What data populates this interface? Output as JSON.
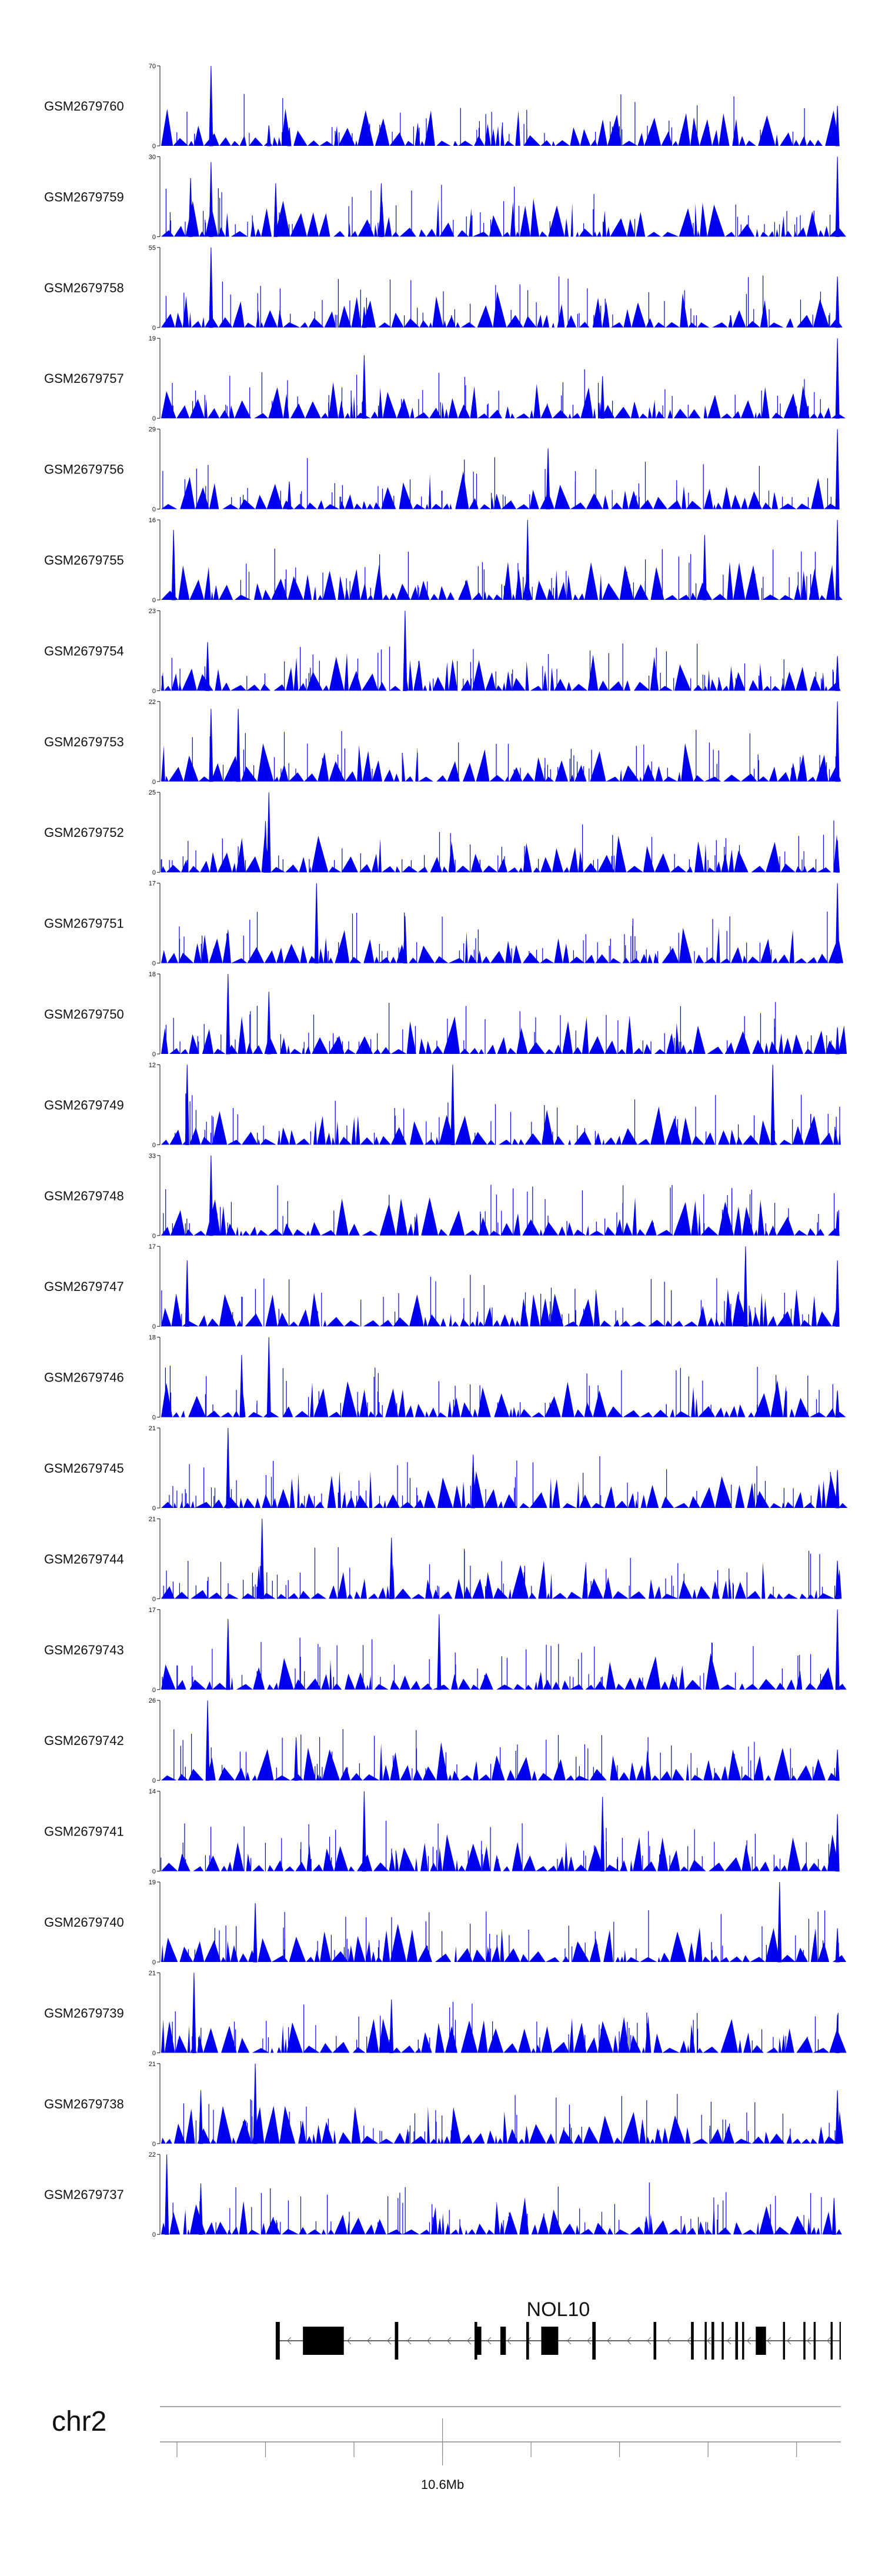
{
  "chart_data": {
    "type": "area",
    "colors": {
      "track_fill": "#0000ee",
      "axis": "#111111",
      "gene": "#000000"
    },
    "tracks": [
      {
        "name": "GSM2679760",
        "ymax": 70,
        "ymin": 0,
        "peaks": [
          [
            0.075,
            70
          ],
          [
            0.16,
            18
          ],
          [
            0.19,
            16
          ],
          [
            0.995,
            35
          ]
        ]
      },
      {
        "name": "GSM2679759",
        "ymax": 30,
        "ymin": 0,
        "peaks": [
          [
            0.045,
            22
          ],
          [
            0.075,
            28
          ],
          [
            0.17,
            20
          ],
          [
            0.325,
            20
          ],
          [
            0.995,
            30
          ]
        ]
      },
      {
        "name": "GSM2679758",
        "ymax": 55,
        "ymin": 0,
        "peaks": [
          [
            0.075,
            55
          ],
          [
            0.3,
            14
          ],
          [
            0.995,
            35
          ]
        ]
      },
      {
        "name": "GSM2679757",
        "ymax": 19,
        "ymin": 0,
        "peaks": [
          [
            0.3,
            15
          ],
          [
            0.65,
            10
          ],
          [
            0.995,
            19
          ]
        ]
      },
      {
        "name": "GSM2679756",
        "ymax": 29,
        "ymin": 0,
        "peaks": [
          [
            0.19,
            10
          ],
          [
            0.57,
            22
          ],
          [
            0.995,
            29
          ]
        ]
      },
      {
        "name": "GSM2679755",
        "ymax": 16,
        "ymin": 0,
        "peaks": [
          [
            0.02,
            14
          ],
          [
            0.54,
            16
          ],
          [
            0.8,
            13
          ],
          [
            0.995,
            16
          ]
        ]
      },
      {
        "name": "GSM2679754",
        "ymax": 23,
        "ymin": 0,
        "peaks": [
          [
            0.07,
            14
          ],
          [
            0.36,
            23
          ],
          [
            0.995,
            10
          ]
        ]
      },
      {
        "name": "GSM2679753",
        "ymax": 22,
        "ymin": 0,
        "peaks": [
          [
            0.075,
            20
          ],
          [
            0.115,
            20
          ],
          [
            0.995,
            22
          ]
        ]
      },
      {
        "name": "GSM2679752",
        "ymax": 25,
        "ymin": 0,
        "peaks": [
          [
            0.16,
            25
          ],
          [
            0.155,
            16
          ],
          [
            0.995,
            10
          ]
        ]
      },
      {
        "name": "GSM2679751",
        "ymax": 17,
        "ymin": 0,
        "peaks": [
          [
            0.23,
            17
          ],
          [
            0.36,
            10
          ],
          [
            0.995,
            17
          ]
        ]
      },
      {
        "name": "GSM2679750",
        "ymax": 18,
        "ymin": 0,
        "peaks": [
          [
            0.1,
            18
          ],
          [
            0.16,
            14
          ],
          [
            0.995,
            6
          ]
        ]
      },
      {
        "name": "GSM2679749",
        "ymax": 12,
        "ymin": 0,
        "peaks": [
          [
            0.04,
            12
          ],
          [
            0.43,
            12
          ],
          [
            0.9,
            12
          ]
        ]
      },
      {
        "name": "GSM2679748",
        "ymax": 33,
        "ymin": 0,
        "peaks": [
          [
            0.075,
            33
          ],
          [
            0.995,
            10
          ]
        ]
      },
      {
        "name": "GSM2679747",
        "ymax": 17,
        "ymin": 0,
        "peaks": [
          [
            0.04,
            14
          ],
          [
            0.86,
            17
          ],
          [
            0.995,
            14
          ]
        ]
      },
      {
        "name": "GSM2679746",
        "ymax": 18,
        "ymin": 0,
        "peaks": [
          [
            0.16,
            18
          ],
          [
            0.12,
            14
          ],
          [
            0.995,
            6
          ]
        ]
      },
      {
        "name": "GSM2679745",
        "ymax": 21,
        "ymin": 0,
        "peaks": [
          [
            0.1,
            21
          ],
          [
            0.46,
            14
          ],
          [
            0.995,
            10
          ]
        ]
      },
      {
        "name": "GSM2679744",
        "ymax": 21,
        "ymin": 0,
        "peaks": [
          [
            0.15,
            21
          ],
          [
            0.34,
            16
          ],
          [
            0.995,
            10
          ]
        ]
      },
      {
        "name": "GSM2679743",
        "ymax": 17,
        "ymin": 0,
        "peaks": [
          [
            0.1,
            15
          ],
          [
            0.41,
            16
          ],
          [
            0.995,
            17
          ]
        ]
      },
      {
        "name": "GSM2679742",
        "ymax": 26,
        "ymin": 0,
        "peaks": [
          [
            0.07,
            26
          ],
          [
            0.2,
            14
          ],
          [
            0.995,
            10
          ]
        ]
      },
      {
        "name": "GSM2679741",
        "ymax": 14,
        "ymin": 0,
        "peaks": [
          [
            0.3,
            14
          ],
          [
            0.65,
            13
          ],
          [
            0.995,
            10
          ]
        ]
      },
      {
        "name": "GSM2679740",
        "ymax": 19,
        "ymin": 0,
        "peaks": [
          [
            0.14,
            14
          ],
          [
            0.91,
            19
          ],
          [
            0.995,
            8
          ]
        ]
      },
      {
        "name": "GSM2679739",
        "ymax": 21,
        "ymin": 0,
        "peaks": [
          [
            0.05,
            21
          ],
          [
            0.34,
            14
          ],
          [
            0.995,
            10
          ]
        ]
      },
      {
        "name": "GSM2679738",
        "ymax": 21,
        "ymin": 0,
        "peaks": [
          [
            0.14,
            21
          ],
          [
            0.06,
            14
          ],
          [
            0.995,
            14
          ]
        ]
      },
      {
        "name": "GSM2679737",
        "ymax": 22,
        "ymin": 0,
        "peaks": [
          [
            0.01,
            22
          ],
          [
            0.06,
            14
          ],
          [
            0.99,
            10
          ]
        ]
      }
    ],
    "gene": {
      "name": "NOL10",
      "strand": "-",
      "start_frac": 0.17,
      "end_frac": 1.0,
      "exons": [
        {
          "start": 0.17,
          "end": 0.176
        },
        {
          "start": 0.21,
          "end": 0.27
        },
        {
          "start": 0.345,
          "end": 0.35
        },
        {
          "start": 0.462,
          "end": 0.466
        },
        {
          "start": 0.465,
          "end": 0.472
        },
        {
          "start": 0.5,
          "end": 0.508
        },
        {
          "start": 0.538,
          "end": 0.542
        },
        {
          "start": 0.56,
          "end": 0.585
        },
        {
          "start": 0.635,
          "end": 0.64
        },
        {
          "start": 0.725,
          "end": 0.729
        },
        {
          "start": 0.78,
          "end": 0.784
        },
        {
          "start": 0.8,
          "end": 0.803
        },
        {
          "start": 0.81,
          "end": 0.814
        },
        {
          "start": 0.825,
          "end": 0.828
        },
        {
          "start": 0.845,
          "end": 0.849
        },
        {
          "start": 0.855,
          "end": 0.858
        },
        {
          "start": 0.875,
          "end": 0.89
        },
        {
          "start": 0.915,
          "end": 0.918
        },
        {
          "start": 0.945,
          "end": 0.948
        },
        {
          "start": 0.96,
          "end": 0.963
        },
        {
          "start": 0.985,
          "end": 0.988
        },
        {
          "start": 0.998,
          "end": 1.0
        }
      ]
    },
    "axis": {
      "chromosome": "chr2",
      "tick_fracs": [
        0.025,
        0.155,
        0.285,
        0.415,
        0.545,
        0.675,
        0.805,
        0.935
      ],
      "major_tick_frac": 0.415,
      "major_tick_label": "10.6Mb"
    }
  }
}
